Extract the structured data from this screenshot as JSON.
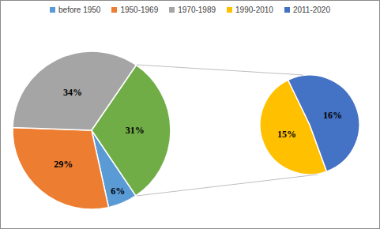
{
  "chart_data": [
    {
      "type": "pie",
      "categories": [
        "before 1950",
        "1950-1969",
        "1970-1989",
        null
      ],
      "values": [
        6,
        29,
        34,
        31
      ],
      "value_labels": [
        "6%",
        "29%",
        "34%",
        "31%"
      ],
      "colors": [
        "#5b9bd5",
        "#ed7d31",
        "#a5a5a5",
        "#70ad47"
      ],
      "data_labels": true,
      "legend": "top"
    },
    {
      "type": "pie",
      "categories": [
        "1990-2010",
        "2011-2020"
      ],
      "values": [
        15,
        16
      ],
      "value_labels": [
        "15%",
        "16%"
      ],
      "colors": [
        "#ffc000",
        "#4472c4"
      ],
      "data_labels": true
    }
  ]
}
